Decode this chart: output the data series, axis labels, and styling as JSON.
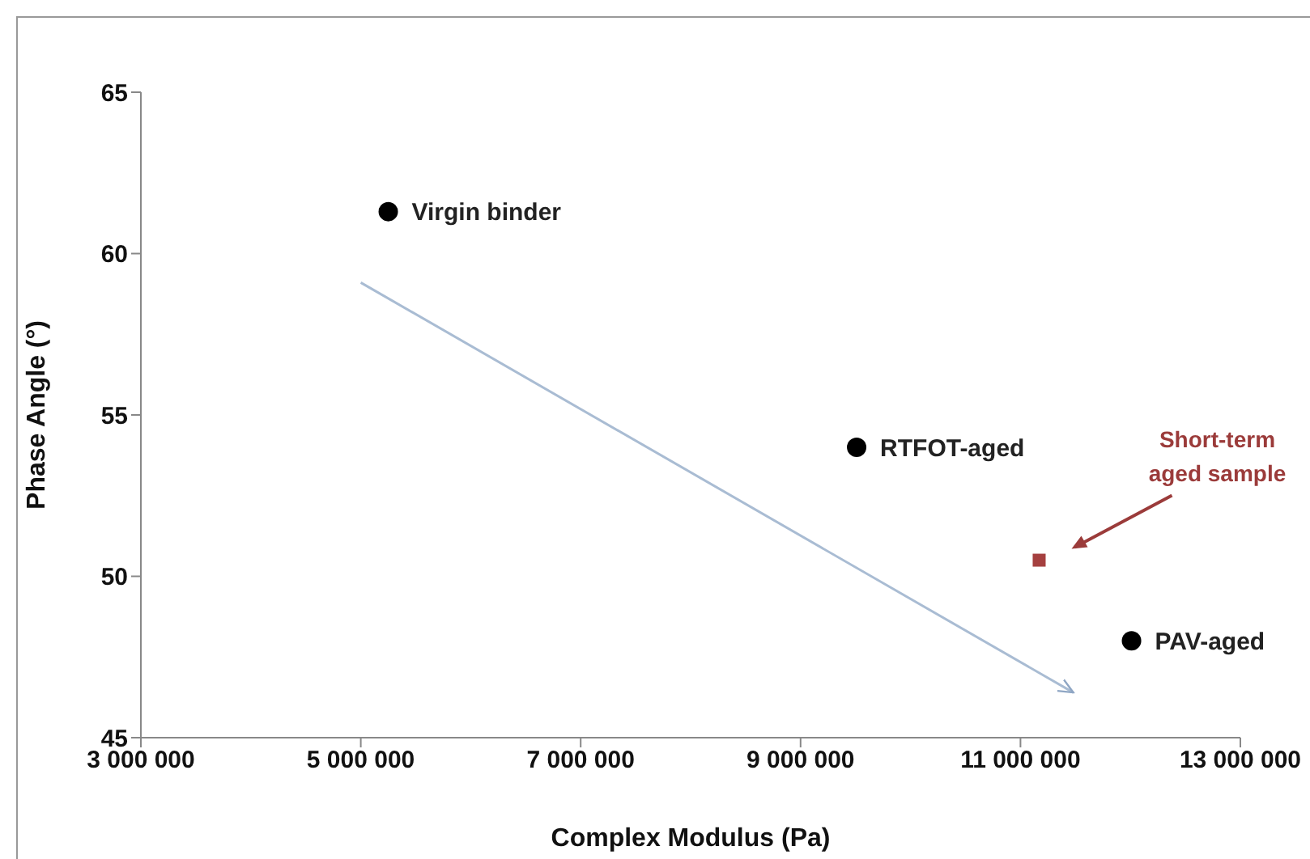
{
  "chart_data": {
    "type": "scatter",
    "xlabel": "Complex Modulus (Pa)",
    "ylabel": "Phase Angle (°)",
    "xlim": [
      3000000,
      13000000
    ],
    "xticks": [
      {
        "value": 3000000,
        "label": "3 000 000"
      },
      {
        "value": 5000000,
        "label": "5 000 000"
      },
      {
        "value": 7000000,
        "label": "7 000 000"
      },
      {
        "value": 9000000,
        "label": "9 000 000"
      },
      {
        "value": 11000000,
        "label": "11 000 000"
      },
      {
        "value": 13000000,
        "label": "13 000 000"
      }
    ],
    "ylim": [
      45,
      65
    ],
    "yticks": [
      45,
      50,
      55,
      60,
      65
    ],
    "series": [
      {
        "name": "Virgin binder",
        "color": "#000000",
        "marker": "circle",
        "x": [
          5250000
        ],
        "values": [
          61.3
        ]
      },
      {
        "name": "RTFOT-aged",
        "color": "#000000",
        "marker": "circle",
        "x": [
          9510000
        ],
        "values": [
          54.0
        ]
      },
      {
        "name": "PAV-aged",
        "color": "#000000",
        "marker": "circle",
        "x": [
          12010000
        ],
        "values": [
          48.0
        ]
      },
      {
        "color": "#a5403f",
        "marker": "square",
        "x": [
          11170000
        ],
        "values": [
          50.5
        ]
      },
      {
        "type": "line",
        "color": "#a9bcd3",
        "marker": "none",
        "x": [
          5000000,
          11480000
        ],
        "values": [
          59.1,
          46.4
        ]
      }
    ],
    "annotations": [
      "Short-term aged sample"
    ]
  }
}
